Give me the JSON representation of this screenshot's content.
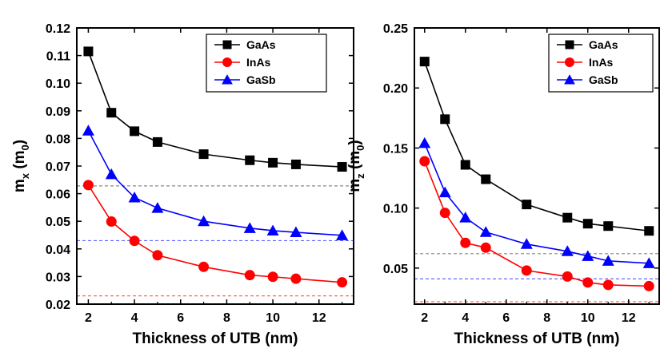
{
  "chart_data": [
    {
      "type": "line",
      "xlabel": "Thickness of UTB (nm)",
      "ylabel_main": "m",
      "ylabel_sub": "x",
      "ylabel_paren_open": " (m",
      "ylabel_paren_sub": "0",
      "ylabel_paren_close": ")",
      "xlim": [
        1.5,
        13.5
      ],
      "ylim": [
        0.02,
        0.12
      ],
      "xticks": [
        2,
        4,
        6,
        8,
        10,
        12
      ],
      "yticks": [
        0.02,
        0.03,
        0.04,
        0.05,
        0.06,
        0.07,
        0.08,
        0.09,
        0.1,
        0.11,
        0.12
      ],
      "ytick_labels": [
        "0.02",
        "0.03",
        "0.04",
        "0.05",
        "0.06",
        "0.07",
        "0.08",
        "0.09",
        "0.10",
        "0.11",
        "0.12"
      ],
      "legend_position": "top-right",
      "x": [
        2,
        3,
        4,
        5,
        7,
        9,
        10,
        11,
        13
      ],
      "series": [
        {
          "name": "GaAs",
          "color": "#000000",
          "marker": "square",
          "values": [
            0.1115,
            0.0893,
            0.0826,
            0.0787,
            0.0743,
            0.0721,
            0.0712,
            0.0706,
            0.0697
          ]
        },
        {
          "name": "InAs",
          "color": "#ff0000",
          "marker": "circle",
          "values": [
            0.0631,
            0.0499,
            0.0429,
            0.0377,
            0.0335,
            0.0305,
            0.0299,
            0.0292,
            0.0279
          ]
        },
        {
          "name": "GaSb",
          "color": "#0000ff",
          "marker": "triangle",
          "values": [
            0.0828,
            0.067,
            0.0586,
            0.0548,
            0.05,
            0.0475,
            0.0466,
            0.046,
            0.0449
          ]
        }
      ],
      "reference_lines": [
        {
          "color": "#888888",
          "y": 0.0628
        },
        {
          "color": "#6666ff",
          "y": 0.043
        },
        {
          "color": "#ff6666",
          "y": 0.023
        }
      ]
    },
    {
      "type": "line",
      "xlabel": "Thickness of UTB (nm)",
      "ylabel_main": "m",
      "ylabel_sub": "z",
      "ylabel_paren_open": " (m",
      "ylabel_paren_sub": "0",
      "ylabel_paren_close": ")",
      "xlim": [
        1.5,
        13.5
      ],
      "ylim": [
        0.02,
        0.25
      ],
      "xticks": [
        2,
        4,
        6,
        8,
        10,
        12
      ],
      "yticks": [
        0.05,
        0.1,
        0.15,
        0.2,
        0.25
      ],
      "ytick_labels": [
        "0.05",
        "0.10",
        "0.15",
        "0.20",
        "0.25"
      ],
      "legend_position": "top-right",
      "x": [
        2,
        3,
        4,
        5,
        7,
        9,
        10,
        11,
        13
      ],
      "series": [
        {
          "name": "GaAs",
          "color": "#000000",
          "marker": "square",
          "values": [
            0.222,
            0.174,
            0.136,
            0.124,
            0.103,
            0.092,
            0.087,
            0.085,
            0.081
          ]
        },
        {
          "name": "InAs",
          "color": "#ff0000",
          "marker": "circle",
          "values": [
            0.139,
            0.096,
            0.071,
            0.067,
            0.048,
            0.043,
            0.038,
            0.036,
            0.035
          ]
        },
        {
          "name": "GaSb",
          "color": "#0000ff",
          "marker": "triangle",
          "values": [
            0.154,
            0.113,
            0.092,
            0.08,
            0.07,
            0.064,
            0.06,
            0.056,
            0.054
          ]
        }
      ],
      "reference_lines": [
        {
          "color": "#888888",
          "y": 0.062
        },
        {
          "color": "#6666ff",
          "y": 0.041
        },
        {
          "color": "#ff6666",
          "y": 0.022
        }
      ]
    }
  ]
}
